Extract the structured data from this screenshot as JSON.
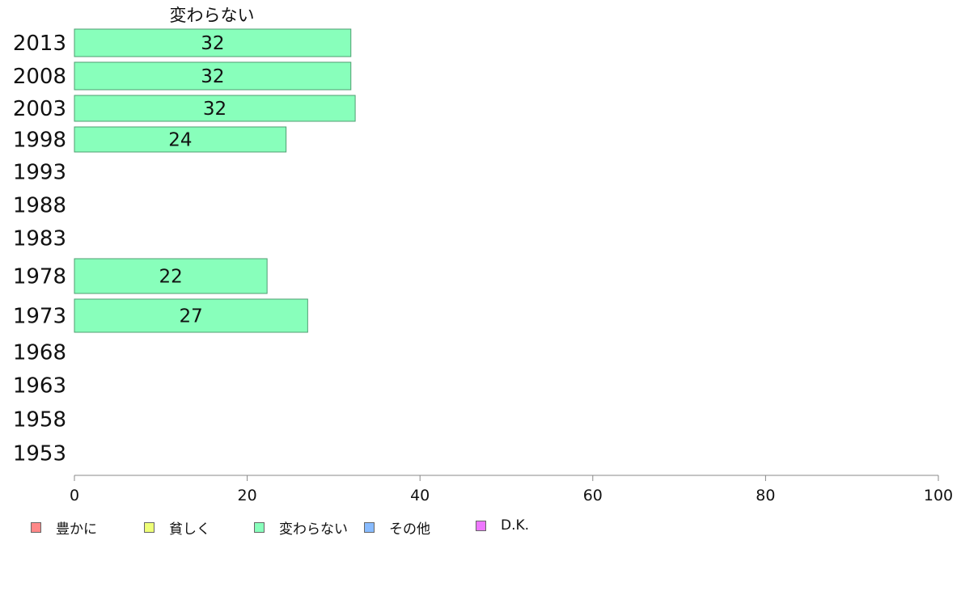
{
  "chart_data": {
    "type": "bar",
    "orientation": "horizontal",
    "title": "変わらない",
    "categories": [
      "2013",
      "2008",
      "2003",
      "1998",
      "1993",
      "1988",
      "1983",
      "1978",
      "1973",
      "1968",
      "1963",
      "1958",
      "1953"
    ],
    "series": [
      {
        "name": "変わらない",
        "color": "#88ffbb",
        "values": [
          32,
          32,
          32.5,
          24.5,
          null,
          null,
          null,
          22.3,
          27,
          null,
          null,
          null,
          null
        ],
        "labels": [
          "32",
          "32",
          "32",
          "24",
          "",
          "",
          "",
          "22",
          "27",
          "",
          "",
          "",
          ""
        ]
      }
    ],
    "xlim": [
      0,
      100
    ],
    "xticks": [
      "0",
      "20",
      "40",
      "60",
      "80",
      "100"
    ],
    "legend": {
      "placement": "bottom-left",
      "items": [
        {
          "label": "豊かに",
          "color": "#ff8888"
        },
        {
          "label": "貧しく",
          "color": "#eeff77"
        },
        {
          "label": "変わらない",
          "color": "#88ffbb"
        },
        {
          "label": "その他",
          "color": "#88bbff"
        },
        {
          "label": "D.K.",
          "color": "#ee77ff"
        }
      ]
    }
  }
}
